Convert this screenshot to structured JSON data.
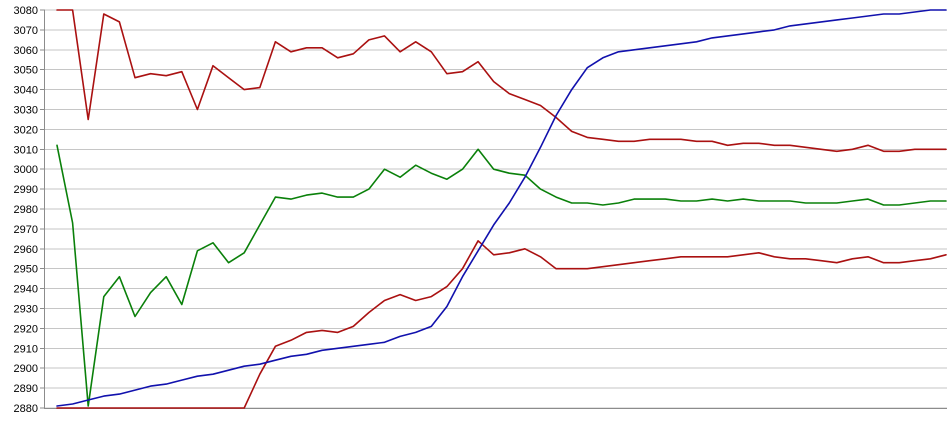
{
  "chart_data": {
    "type": "line",
    "title": "",
    "legend": "none",
    "grid": "horizontal",
    "x_axis": {
      "labels_visible": false,
      "point_count": 58
    },
    "y_axis": {
      "min": 2880,
      "max": 3080,
      "step": 10,
      "tick_labels": [
        "3080",
        "3070",
        "3060",
        "3050",
        "3040",
        "3030",
        "3020",
        "3010",
        "3000",
        "2990",
        "2980",
        "2970",
        "2960",
        "2950",
        "2940",
        "2930",
        "2920",
        "2910",
        "2900",
        "2890",
        "2880"
      ]
    },
    "style": {
      "background_color": "#ffffff",
      "gridline_color": "#c6c6c6",
      "axis_color": "#8c8c8c",
      "label_color": "#000000"
    },
    "series": [
      {
        "name": "upper-dark-red-line",
        "color": "#aa1111",
        "values": [
          3080,
          3080,
          3025,
          3078,
          3074,
          3046,
          3048,
          3047,
          3049,
          3030,
          3052,
          3046,
          3040,
          3041,
          3064,
          3059,
          3061,
          3061,
          3056,
          3058,
          3065,
          3067,
          3059,
          3064,
          3059,
          3048,
          3049,
          3054,
          3044,
          3038,
          3035,
          3032,
          3026,
          3019,
          3016,
          3015,
          3014,
          3014,
          3015,
          3015,
          3015,
          3014,
          3014,
          3012,
          3013,
          3013,
          3012,
          3012,
          3011,
          3010,
          3009,
          3010,
          3012,
          3009,
          3009,
          3010,
          3010,
          3010
        ]
      },
      {
        "name": "green-line",
        "color": "#0a800a",
        "values": [
          3012,
          2973,
          2881,
          2936,
          2946,
          2926,
          2938,
          2946,
          2932,
          2959,
          2963,
          2953,
          2958,
          2972,
          2986,
          2985,
          2987,
          2988,
          2986,
          2986,
          2990,
          3000,
          2996,
          3002,
          2998,
          2995,
          3000,
          3010,
          3000,
          2998,
          2997,
          2990,
          2986,
          2983,
          2983,
          2982,
          2983,
          2985,
          2985,
          2985,
          2984,
          2984,
          2985,
          2984,
          2985,
          2984,
          2984,
          2984,
          2983,
          2983,
          2983,
          2984,
          2985,
          2982,
          2982,
          2983,
          2984,
          2984
        ]
      },
      {
        "name": "lower-dark-red-line",
        "color": "#aa1111",
        "values": [
          2880,
          2880,
          2880,
          2880,
          2880,
          2880,
          2880,
          2880,
          2880,
          2880,
          2880,
          2880,
          2880,
          2897,
          2911,
          2914,
          2918,
          2919,
          2918,
          2921,
          2928,
          2934,
          2937,
          2934,
          2936,
          2941,
          2950,
          2964,
          2957,
          2958,
          2960,
          2956,
          2950,
          2950,
          2950,
          2951,
          2952,
          2953,
          2954,
          2955,
          2956,
          2956,
          2956,
          2956,
          2957,
          2958,
          2956,
          2955,
          2955,
          2954,
          2953,
          2955,
          2956,
          2953,
          2953,
          2954,
          2955,
          2957
        ]
      },
      {
        "name": "blue-line",
        "color": "#1111ad",
        "values": [
          2881,
          2882,
          2884,
          2886,
          2887,
          2889,
          2891,
          2892,
          2894,
          2896,
          2897,
          2899,
          2901,
          2902,
          2904,
          2906,
          2907,
          2909,
          2910,
          2911,
          2912,
          2913,
          2916,
          2918,
          2921,
          2931,
          2946,
          2959,
          2972,
          2983,
          2996,
          3011,
          3027,
          3040,
          3051,
          3056,
          3059,
          3060,
          3061,
          3062,
          3063,
          3064,
          3066,
          3067,
          3068,
          3069,
          3070,
          3072,
          3073,
          3074,
          3075,
          3076,
          3077,
          3078,
          3078,
          3079,
          3080,
          3080
        ]
      }
    ]
  }
}
